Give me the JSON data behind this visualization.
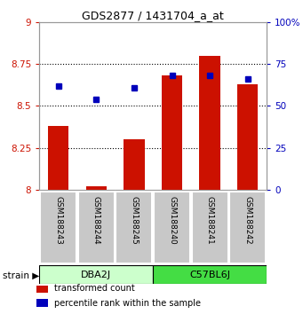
{
  "title": "GDS2877 / 1431704_a_at",
  "samples": [
    "GSM188243",
    "GSM188244",
    "GSM188245",
    "GSM188240",
    "GSM188241",
    "GSM188242"
  ],
  "transformed_counts": [
    8.38,
    8.02,
    8.3,
    8.68,
    8.8,
    8.63
  ],
  "percentile_ranks": [
    62,
    54,
    61,
    68,
    68,
    66
  ],
  "ylim_left": [
    8.0,
    9.0
  ],
  "ylim_right": [
    0,
    100
  ],
  "yticks_left": [
    8.0,
    8.25,
    8.5,
    8.75,
    9.0
  ],
  "ytick_labels_left": [
    "8",
    "8.25",
    "8.5",
    "8.75",
    "9"
  ],
  "yticks_right": [
    0,
    25,
    50,
    75,
    100
  ],
  "ytick_labels_right": [
    "0",
    "25",
    "50",
    "75",
    "100%"
  ],
  "bar_color": "#CC1100",
  "dot_color": "#0000BB",
  "grid_ticks": [
    8.25,
    8.5,
    8.75
  ],
  "dba2j_color": "#CCFFCC",
  "c57bl6j_color": "#44DD44",
  "sample_bg": "#C8C8C8",
  "legend_items": [
    {
      "color": "#CC1100",
      "label": "transformed count"
    },
    {
      "color": "#0000BB",
      "label": "percentile rank within the sample"
    }
  ]
}
